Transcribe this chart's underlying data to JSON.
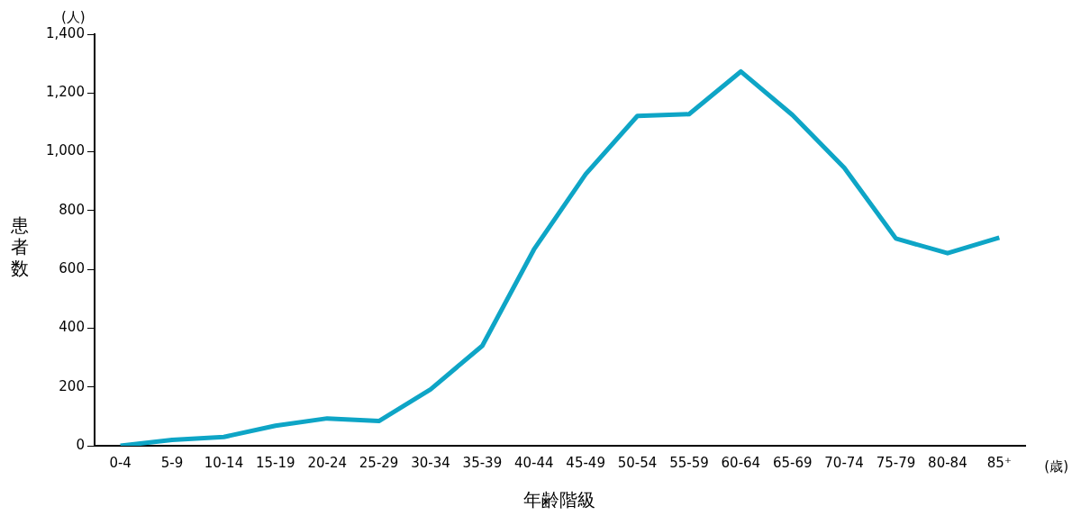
{
  "chart_data": {
    "type": "line",
    "xlabel": "年齢階級",
    "ylabel": "患者数",
    "annotations": [
      "(人)",
      "(歳)"
    ],
    "categories": [
      "0-4",
      "5-9",
      "10-14",
      "15-19",
      "20-24",
      "25-29",
      "30-34",
      "35-39",
      "40-44",
      "45-49",
      "50-54",
      "55-59",
      "60-64",
      "65-69",
      "70-74",
      "75-79",
      "80-84",
      "85⁺"
    ],
    "series": [
      {
        "color": "#0ea5c6",
        "values": [
          0,
          20,
          30,
          68,
          93,
          84,
          192,
          340,
          668,
          924,
          1122,
          1128,
          1273,
          1125,
          946,
          705,
          655,
          708
        ]
      }
    ],
    "ylim": [
      0,
      1400
    ],
    "yticks": [
      {
        "value": 0,
        "label": "0"
      },
      {
        "value": 200,
        "label": "200"
      },
      {
        "value": 400,
        "label": "400"
      },
      {
        "value": 600,
        "label": "600"
      },
      {
        "value": 800,
        "label": "800"
      },
      {
        "value": 1000,
        "label": "1,000"
      },
      {
        "value": 1200,
        "label": "1,200"
      },
      {
        "value": 1400,
        "label": "1,400"
      }
    ],
    "grid": false,
    "legend": false,
    "marker": "none",
    "line_style": "solid"
  }
}
